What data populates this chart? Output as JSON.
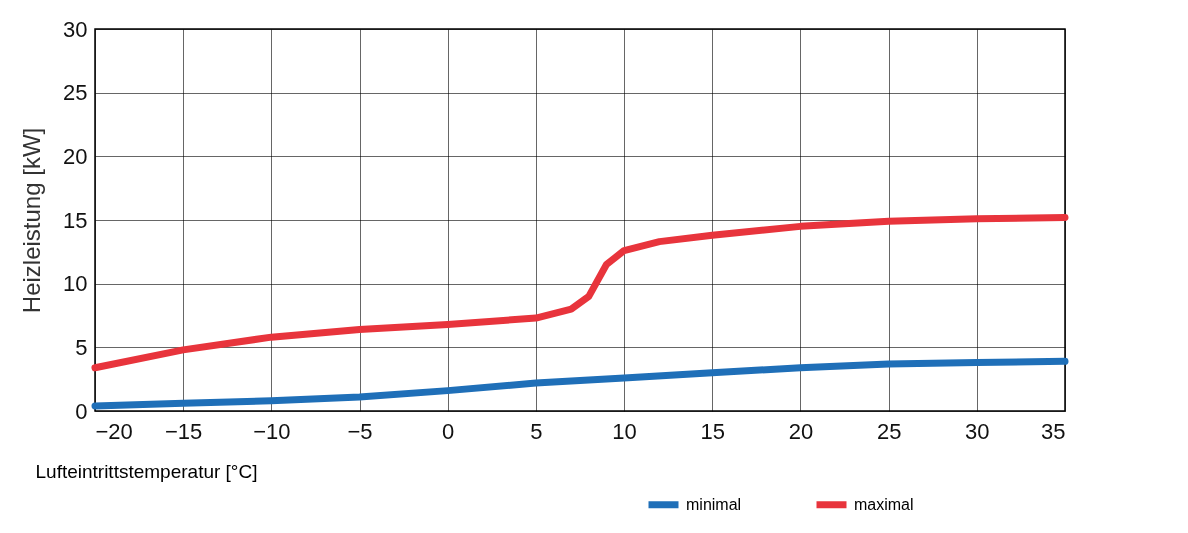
{
  "chart_data": {
    "type": "line",
    "xlabel": "Lufteintrittstemperatur [°C]",
    "ylabel": "Heizleistung [kW]",
    "xlim": [
      -20,
      35
    ],
    "xticks": [
      -20,
      -15,
      -10,
      -5,
      0,
      5,
      10,
      15,
      20,
      25,
      30,
      35
    ],
    "ylim": [
      0,
      30
    ],
    "yticks": [
      0,
      5,
      10,
      15,
      20,
      25,
      30
    ],
    "grid": true,
    "legend": "bottom right",
    "marker": "none",
    "line_style": "solid",
    "series": [
      {
        "name": "minimal",
        "color": "#1f6fb8",
        "x": [
          -20,
          -15,
          -10,
          -5,
          0,
          5,
          10,
          15,
          20,
          25,
          30,
          35
        ],
        "values": [
          0.4,
          0.6,
          0.8,
          1.1,
          1.6,
          2.2,
          2.6,
          3.0,
          3.4,
          3.7,
          3.8,
          3.9
        ]
      },
      {
        "name": "maximal",
        "color": "#e8343c",
        "x": [
          -20,
          -15,
          -10,
          -5,
          0,
          5,
          7,
          8,
          9,
          10,
          12,
          15,
          20,
          25,
          30,
          35
        ],
        "values": [
          3.4,
          4.8,
          5.8,
          6.4,
          6.8,
          7.3,
          8.0,
          9.0,
          11.5,
          12.6,
          13.3,
          13.8,
          14.5,
          14.9,
          15.1,
          15.2
        ]
      }
    ]
  }
}
